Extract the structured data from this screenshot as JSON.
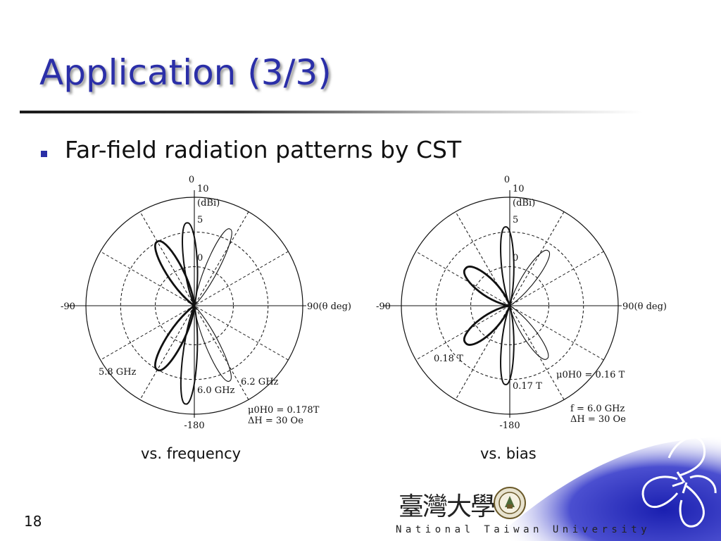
{
  "slide": {
    "title": "Application (3/3)",
    "bullet": "Far-field radiation patterns by CST",
    "number": "18"
  },
  "chart_data": [
    {
      "type": "polar",
      "caption": "vs. frequency",
      "angle_labels": {
        "top": "0",
        "left": "-90",
        "right": "90(θ deg)",
        "bottom": "-180"
      },
      "radial_labels": [
        "10",
        "(dBi)",
        "5",
        "0"
      ],
      "series": [
        {
          "name": "5.8 GHz",
          "style": "bold"
        },
        {
          "name": "6.0 GHz",
          "style": "medium"
        },
        {
          "name": "6.2 GHz",
          "style": "thin"
        }
      ],
      "annotations": [
        "μ0H0 = 0.178T",
        "ΔH = 30 Oe"
      ]
    },
    {
      "type": "polar",
      "caption": "vs. bias",
      "angle_labels": {
        "top": "0",
        "left": "-90",
        "right": "90(θ deg)",
        "bottom": "-180"
      },
      "radial_labels": [
        "10",
        "(dBi)",
        "5",
        "0"
      ],
      "series": [
        {
          "name": "0.18 T",
          "style": "bold"
        },
        {
          "name": "0.17 T",
          "style": "medium"
        },
        {
          "name": "μ0H0 = 0.16 T",
          "style": "thin"
        }
      ],
      "annotations": [
        "f = 6.0 GHz",
        "ΔH = 30 Oe"
      ]
    }
  ],
  "footer": {
    "university_cjk": "臺灣大學",
    "university_en": "National Taiwan University",
    "brand_color": "#2b2fa8"
  }
}
